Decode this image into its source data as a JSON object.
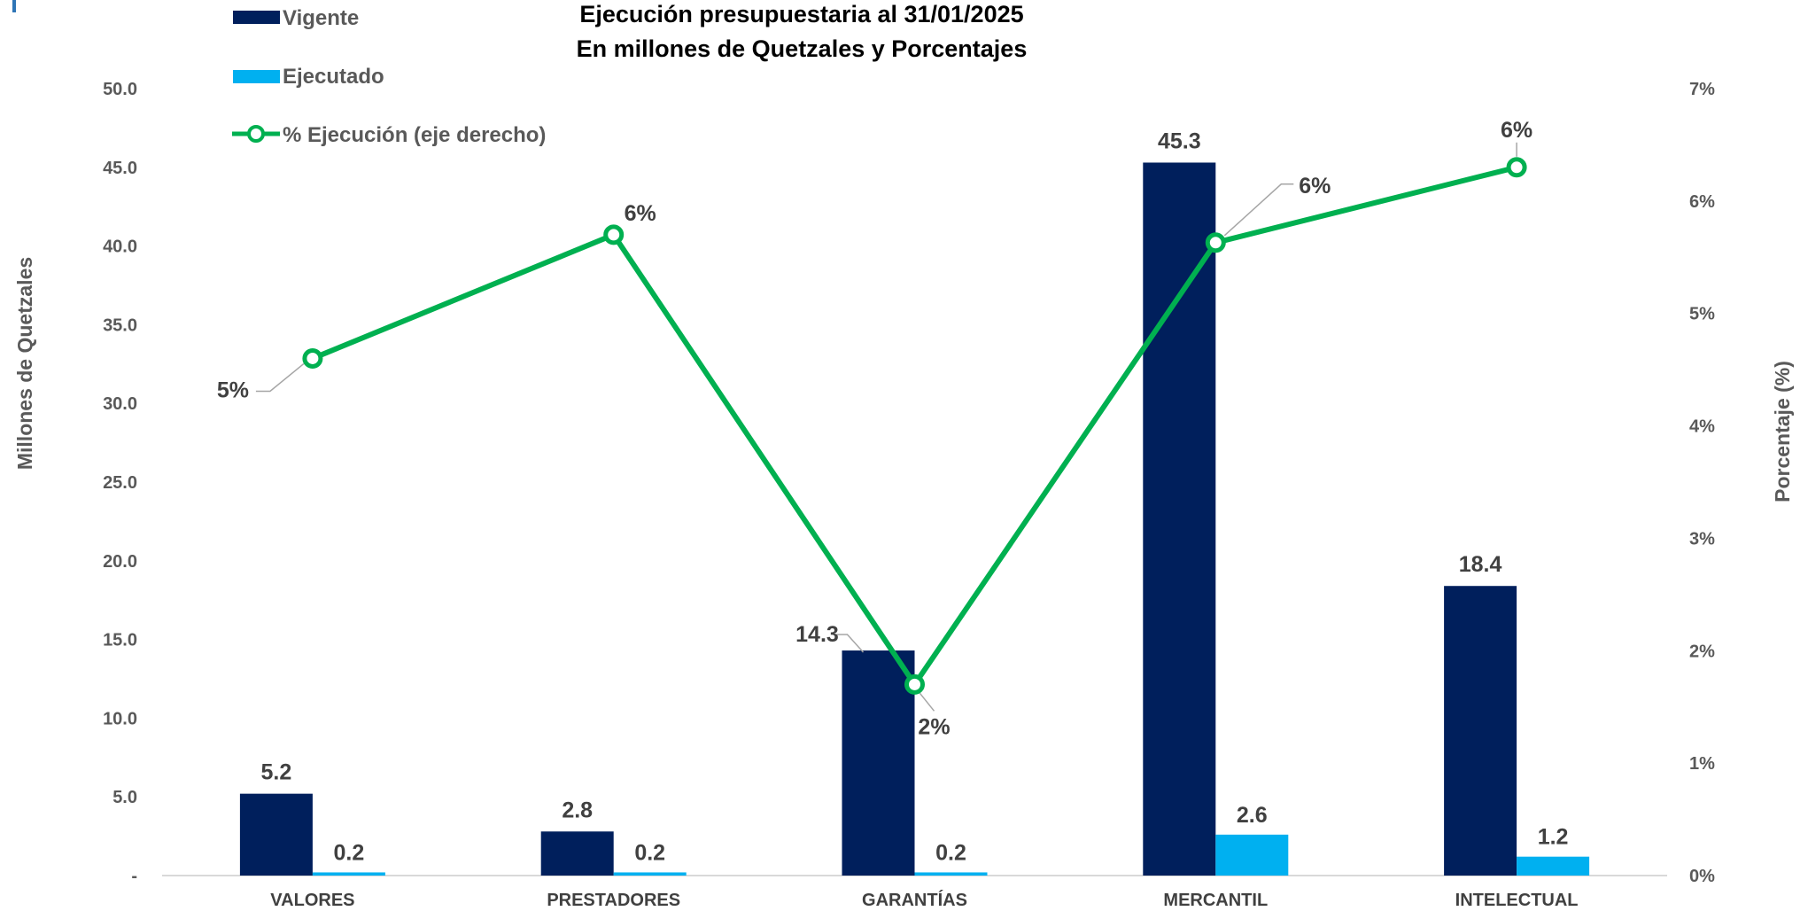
{
  "chart_data": {
    "type": "bar",
    "title": "Ejecución presupuestaria al 31/01/2025",
    "subtitle": "En millones de Quetzales y Porcentajes",
    "categories": [
      "VALORES",
      "PRESTADORES",
      "GARANTÍAS",
      "MERCANTIL",
      "INTELECTUAL"
    ],
    "series": [
      {
        "name": "Vigente",
        "type": "bar",
        "axis": "left",
        "color": "#001F5C",
        "values": [
          5.2,
          2.8,
          14.3,
          45.3,
          18.4
        ],
        "labels": [
          "5.2",
          "2.8",
          "14.3",
          "45.3",
          "18.4"
        ]
      },
      {
        "name": "Ejecutado",
        "type": "bar",
        "axis": "left",
        "color": "#00B0F0",
        "values": [
          0.2,
          0.2,
          0.2,
          2.6,
          1.2
        ],
        "labels": [
          "0.2",
          "0.2",
          "0.2",
          "2.6",
          "1.2"
        ]
      },
      {
        "name": "% Ejecución (eje derecho)",
        "type": "line",
        "axis": "right",
        "color": "#00B050",
        "values": [
          4.6,
          5.7,
          1.7,
          5.63,
          6.3
        ],
        "labels": [
          "5%",
          "6%",
          "2%",
          "6%",
          "6%"
        ]
      }
    ],
    "ylabel": "Millones de Quetzales",
    "y2label": "Porcentaje (%)",
    "ylim": [
      0,
      50
    ],
    "y2lim": [
      0,
      7
    ],
    "yticks": [
      "-",
      "5.0",
      "10.0",
      "15.0",
      "20.0",
      "25.0",
      "30.0",
      "35.0",
      "40.0",
      "45.0",
      "50.0"
    ],
    "y2ticks": [
      "0%",
      "1%",
      "2%",
      "3%",
      "4%",
      "5%",
      "6%",
      "7%"
    ],
    "grid": false,
    "legend": "top-left"
  }
}
